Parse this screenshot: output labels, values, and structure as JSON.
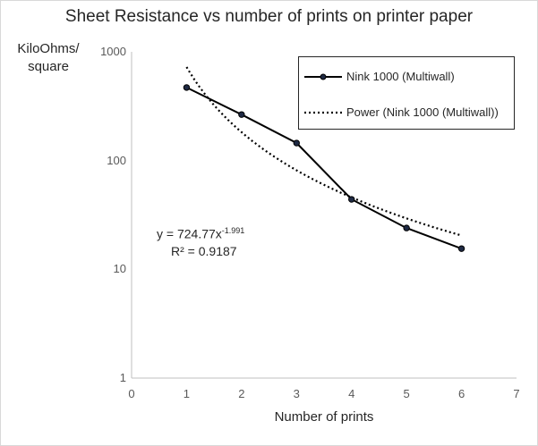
{
  "chart_data": {
    "type": "scatter",
    "title": "Sheet Resistance vs number of prints on printer paper",
    "xlabel": "Number of prints",
    "ylabel": "KiloOhms/ square",
    "xlim": [
      0,
      7
    ],
    "ylim": [
      1,
      1000
    ],
    "y_scale": "log",
    "x_ticks": [
      "0",
      "1",
      "2",
      "3",
      "4",
      "5",
      "6",
      "7"
    ],
    "y_ticks": [
      "1",
      "10",
      "100",
      "1000"
    ],
    "grid": false,
    "legend_position": "top-right",
    "series": [
      {
        "name": "Nink 1000 (Multiwall)",
        "style": "solid line with circle markers",
        "color": "#000000",
        "x": [
          1,
          2,
          3,
          4,
          5,
          6
        ],
        "y": [
          470,
          265,
          145,
          44,
          24,
          15.5
        ]
      },
      {
        "name": "Power (Nink 1000 (Multiwall))",
        "style": "dotted trendline",
        "color": "#000000",
        "fit": {
          "a": 724.77,
          "b": -1.991
        },
        "x_range": [
          1,
          6
        ]
      }
    ],
    "annotation": {
      "equation_prefix": "y = 724.77x",
      "equation_exponent": "-1.991",
      "r_squared": "R² = 0.9187"
    }
  }
}
